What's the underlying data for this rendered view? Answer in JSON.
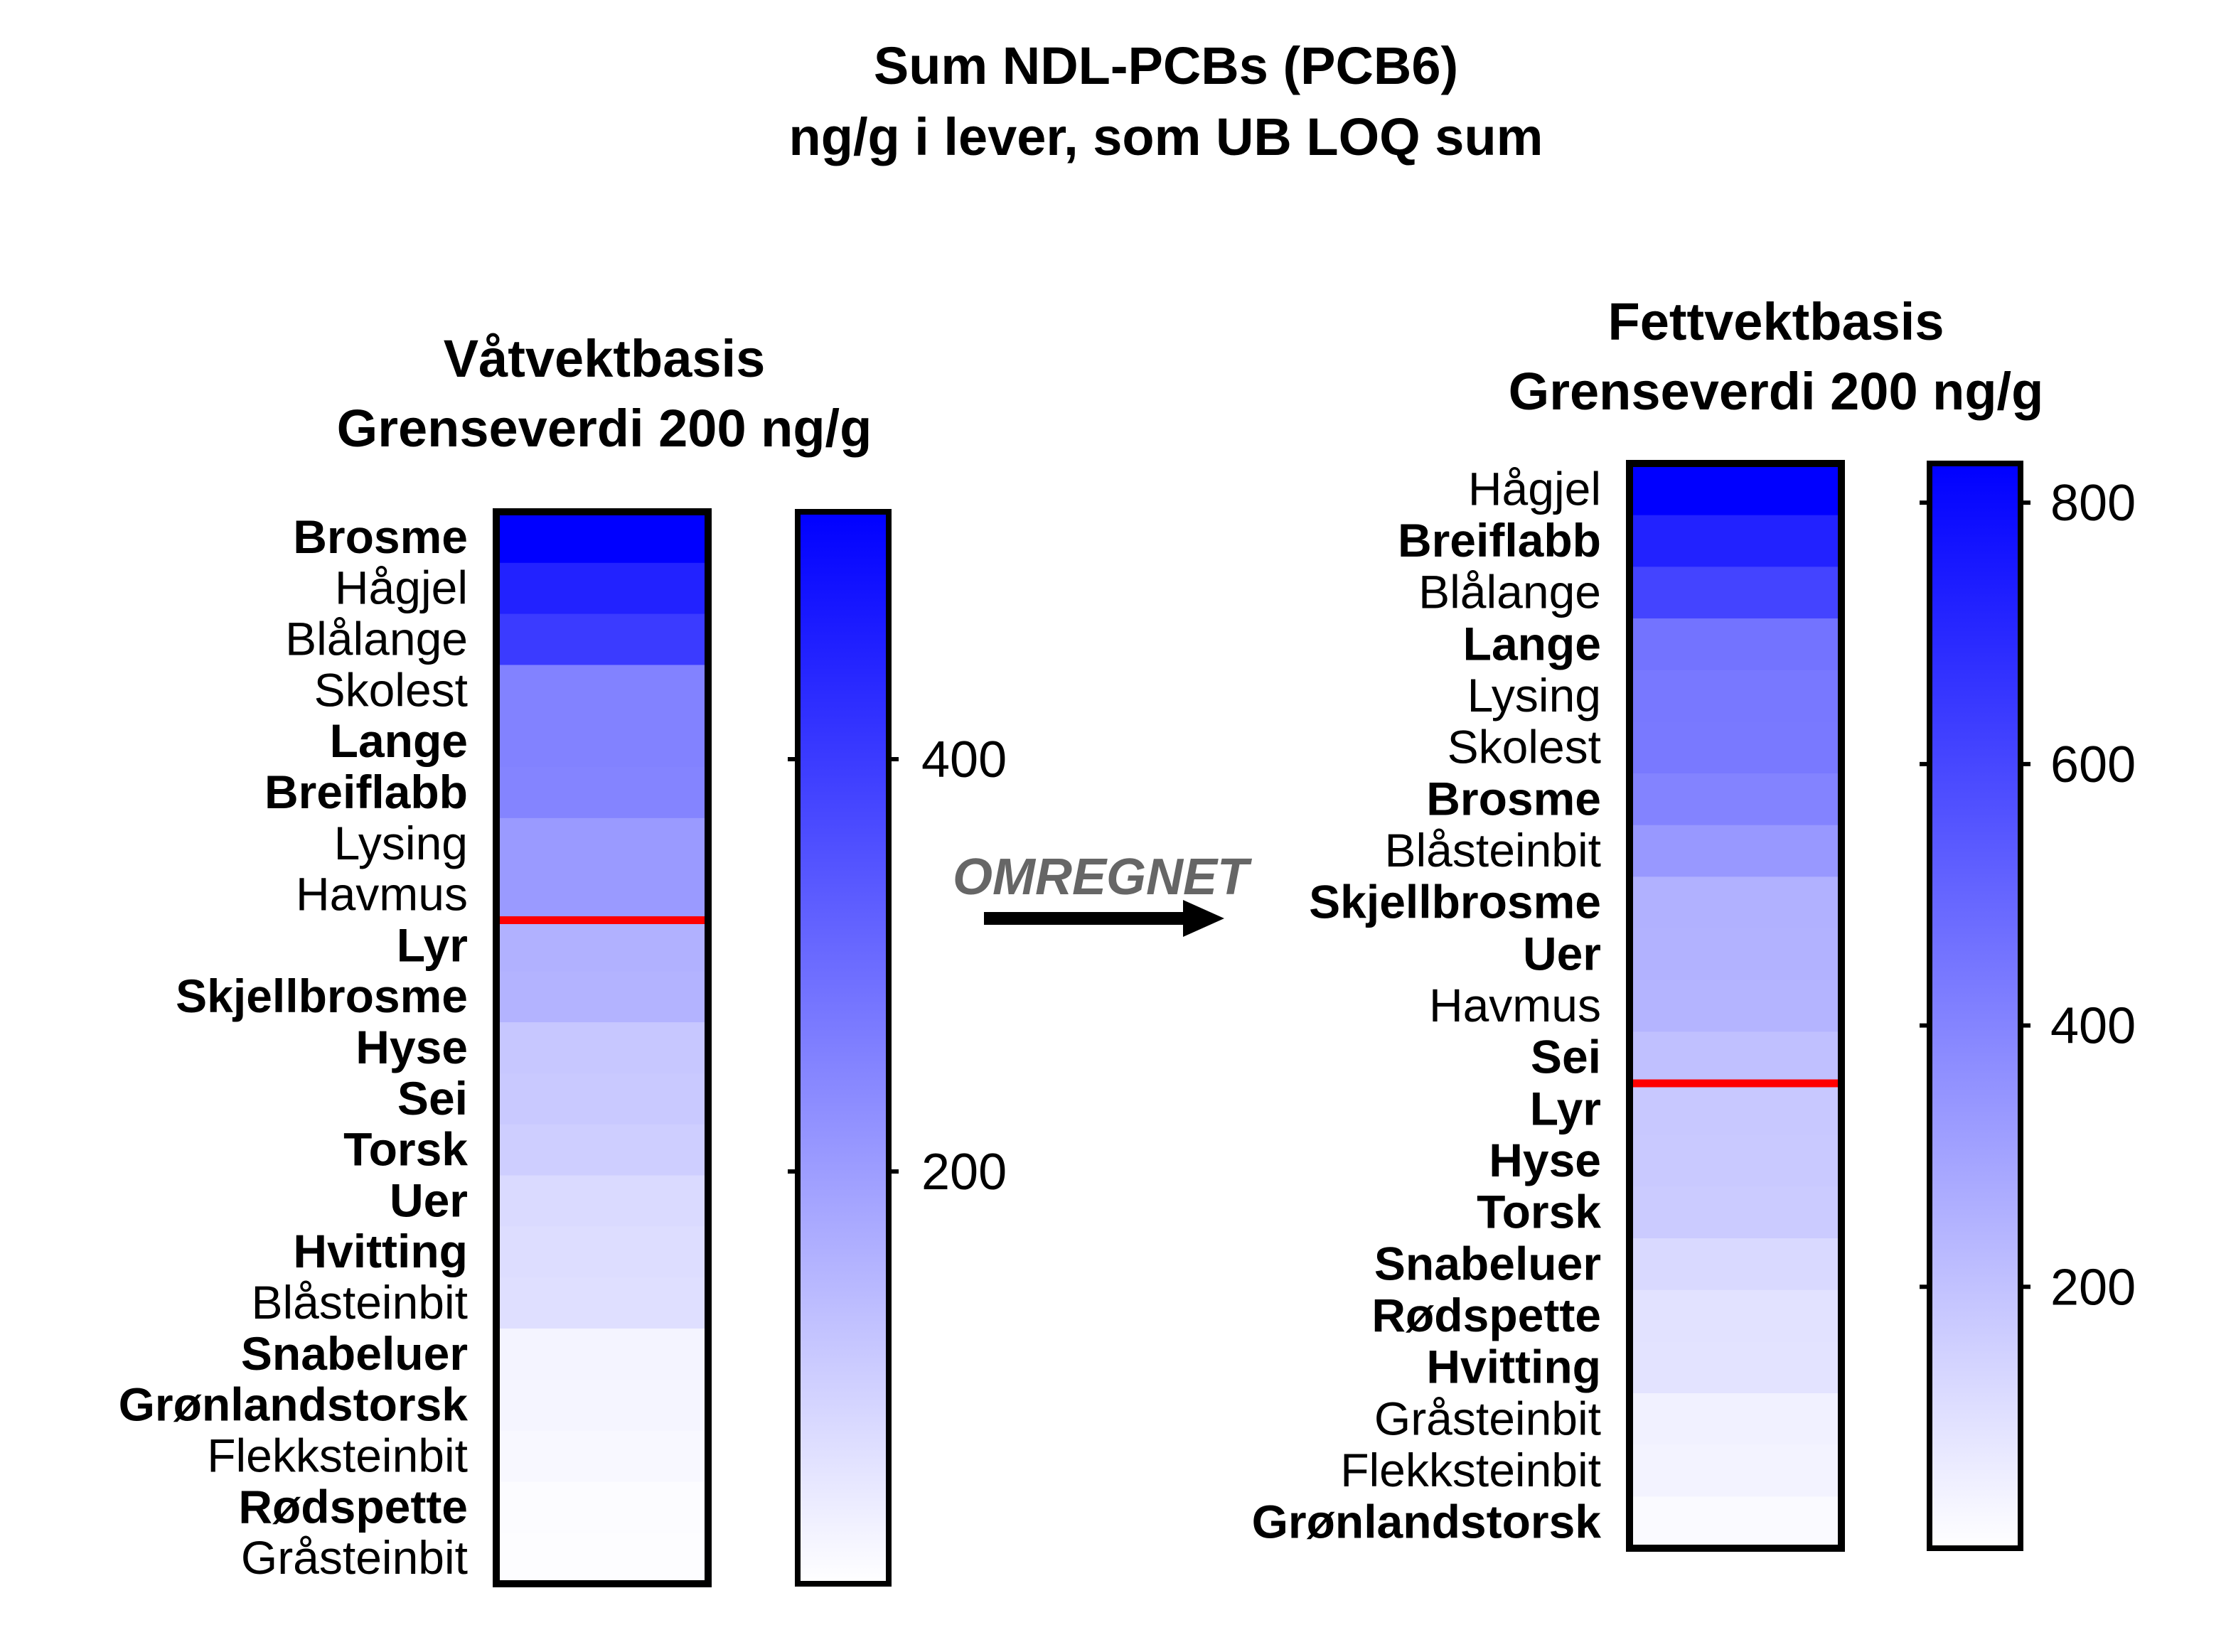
{
  "title": {
    "line1": "Sum NDL-PCBs (PCB6)",
    "line2": "ng/g i lever, som UB LOQ sum"
  },
  "arrow": {
    "label": "OMREGNET",
    "label_color": "#666666"
  },
  "colors": {
    "max": "#0000ff",
    "min": "#ffffff",
    "limit_line": "#ff0000",
    "frame": "#000000"
  },
  "chart_data": [
    {
      "type": "heatmap",
      "title": "Våtvektbasis",
      "subtitle": "Grenseverdi 200 ng/g",
      "limit": 200,
      "scale": {
        "min": 0,
        "max": 520,
        "ticks": [
          200,
          400
        ],
        "color_min": "#ffffff",
        "color_max": "#0000ff"
      },
      "rows": [
        {
          "label": "Brosme",
          "bold": true,
          "value": 520
        },
        {
          "label": "Hågjel",
          "bold": false,
          "value": 450
        },
        {
          "label": "Blålange",
          "bold": false,
          "value": 400
        },
        {
          "label": "Skolest",
          "bold": false,
          "value": 255
        },
        {
          "label": "Lange",
          "bold": true,
          "value": 255
        },
        {
          "label": "Breiflabb",
          "bold": true,
          "value": 250
        },
        {
          "label": "Lysing",
          "bold": false,
          "value": 205
        },
        {
          "label": "Havmus",
          "bold": false,
          "value": 205
        },
        {
          "label": "Lyr",
          "bold": true,
          "value": 160
        },
        {
          "label": "Skjellbrosme",
          "bold": true,
          "value": 155
        },
        {
          "label": "Hyse",
          "bold": true,
          "value": 115
        },
        {
          "label": "Sei",
          "bold": true,
          "value": 110
        },
        {
          "label": "Torsk ",
          "bold": true,
          "value": 100
        },
        {
          "label": "Uer",
          "bold": true,
          "value": 75
        },
        {
          "label": "Hvitting",
          "bold": true,
          "value": 70
        },
        {
          "label": "Blåsteinbit",
          "bold": false,
          "value": 65
        },
        {
          "label": "Snabeluer",
          "bold": true,
          "value": 22
        },
        {
          "label": "Grønlandstorsk",
          "bold": true,
          "value": 20
        },
        {
          "label": "Flekksteinbit",
          "bold": false,
          "value": 15
        },
        {
          "label": "Rødspette",
          "bold": true,
          "value": 6
        },
        {
          "label": "Gråsteinbit",
          "bold": false,
          "value": 4
        }
      ]
    },
    {
      "type": "heatmap",
      "title": "Fettvektbasis",
      "subtitle": "Grenseverdi 200 ng/g",
      "limit": 200,
      "scale": {
        "min": 0,
        "max": 830,
        "ticks": [
          200,
          400,
          600,
          800
        ],
        "color_min": "#ffffff",
        "color_max": "#0000ff"
      },
      "rows": [
        {
          "label": "Hågjel",
          "bold": false,
          "value": 830
        },
        {
          "label": "Breiflabb",
          "bold": true,
          "value": 720
        },
        {
          "label": "Blålange",
          "bold": false,
          "value": 610
        },
        {
          "label": "Lange",
          "bold": true,
          "value": 455
        },
        {
          "label": "Lysing",
          "bold": false,
          "value": 440
        },
        {
          "label": "Skolest",
          "bold": false,
          "value": 435
        },
        {
          "label": "Brosme",
          "bold": true,
          "value": 405
        },
        {
          "label": "Blåsteinbit",
          "bold": false,
          "value": 335
        },
        {
          "label": "Skjellbrosme",
          "bold": true,
          "value": 255
        },
        {
          "label": "Uer",
          "bold": true,
          "value": 250
        },
        {
          "label": "Havmus",
          "bold": false,
          "value": 245
        },
        {
          "label": "Sei",
          "bold": true,
          "value": 205
        },
        {
          "label": "Lyr",
          "bold": true,
          "value": 180
        },
        {
          "label": "Hyse",
          "bold": true,
          "value": 175
        },
        {
          "label": "Torsk ",
          "bold": true,
          "value": 170
        },
        {
          "label": "Snabeluer",
          "bold": true,
          "value": 125
        },
        {
          "label": "Rødspette",
          "bold": true,
          "value": 95
        },
        {
          "label": "Hvitting",
          "bold": true,
          "value": 90
        },
        {
          "label": "Gråsteinbit",
          "bold": false,
          "value": 45
        },
        {
          "label": "Flekksteinbit",
          "bold": false,
          "value": 40
        },
        {
          "label": "Grønlandstorsk",
          "bold": true,
          "value": 15
        }
      ]
    }
  ]
}
